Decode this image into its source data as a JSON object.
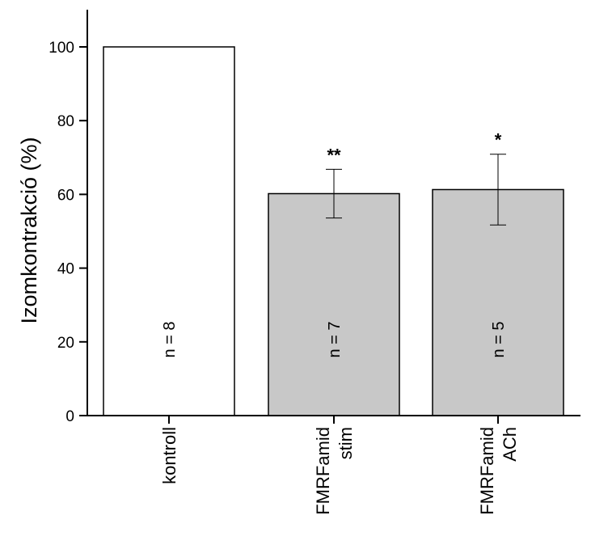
{
  "chart_data": {
    "type": "bar",
    "title": "",
    "xlabel": "",
    "ylabel": "Izomkontrakció (%)",
    "ylim": [
      0,
      110
    ],
    "yticks": [
      0,
      20,
      40,
      60,
      80,
      100
    ],
    "grid": false,
    "legend": "none",
    "categories": [
      [
        "kontroll"
      ],
      [
        "FMRFamid",
        "stim"
      ],
      [
        "FMRFamid",
        "ACh"
      ]
    ],
    "values": [
      100,
      60.2,
      61.3
    ],
    "errors": [
      0,
      6.6,
      9.6
    ],
    "n_labels": [
      "n = 8",
      "n = 7",
      "n = 5"
    ],
    "significance": [
      "",
      "**",
      "*"
    ],
    "colors": [
      "#ffffff",
      "#c8c8c8",
      "#c8c8c8"
    ]
  }
}
